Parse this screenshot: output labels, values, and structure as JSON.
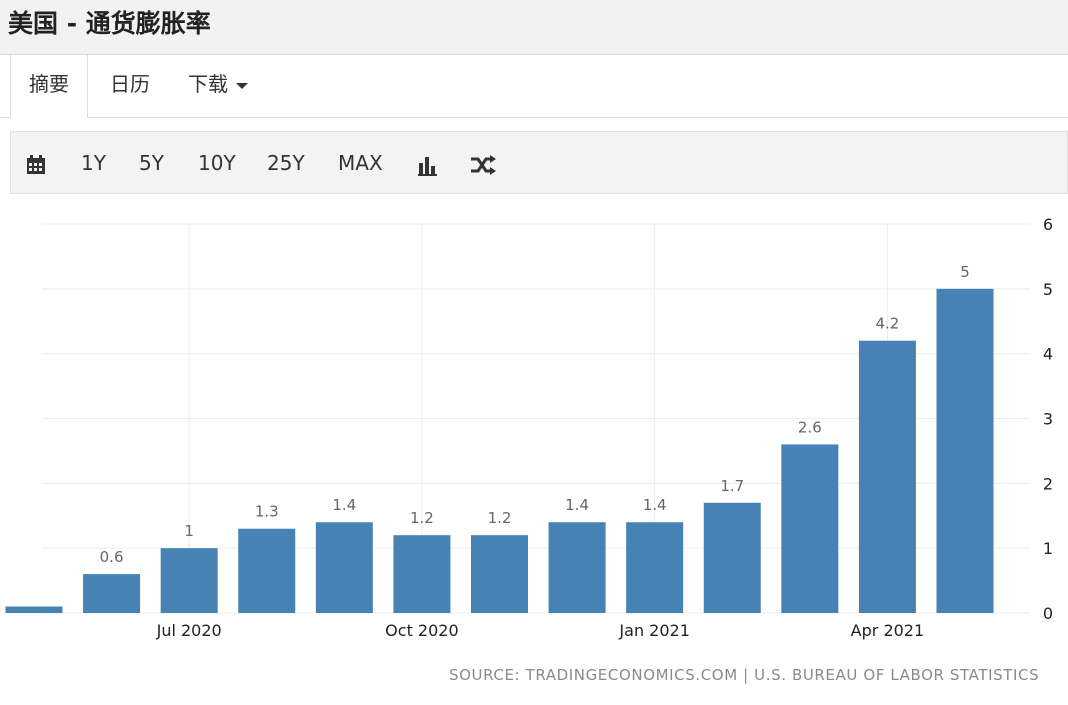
{
  "header": {
    "title": "美国 - 通货膨胀率"
  },
  "tabs": [
    {
      "label": "摘要",
      "active": true
    },
    {
      "label": "日历",
      "active": false
    },
    {
      "label": "下载",
      "active": false
    }
  ],
  "toolbar": {
    "calendar_icon": "calendar-icon",
    "ranges": [
      "1Y",
      "5Y",
      "10Y",
      "25Y",
      "MAX"
    ],
    "chart_type_icon": "bar-chart-icon",
    "compare_icon": "shuffle-icon"
  },
  "chart_data": {
    "type": "bar",
    "categories": [
      "May 2020",
      "Jun 2020",
      "Jul 2020",
      "Aug 2020",
      "Sep 2020",
      "Oct 2020",
      "Nov 2020",
      "Dec 2020",
      "Jan 2021",
      "Feb 2021",
      "Mar 2021",
      "Apr 2021",
      "May 2021"
    ],
    "values": [
      0.1,
      0.6,
      1,
      1.3,
      1.4,
      1.2,
      1.2,
      1.4,
      1.4,
      1.7,
      2.6,
      4.2,
      5
    ],
    "data_labels": [
      "",
      "0.6",
      "1",
      "1.3",
      "1.4",
      "1.2",
      "1.2",
      "1.4",
      "1.4",
      "1.7",
      "2.6",
      "4.2",
      "5"
    ],
    "x_tick_labels": [
      "Jul 2020",
      "Oct 2020",
      "Jan 2021",
      "Apr 2021"
    ],
    "y_ticks": [
      0,
      1,
      2,
      3,
      4,
      5,
      6
    ],
    "ylim": [
      0,
      6
    ],
    "yaxis_position": "right",
    "grid": true,
    "bar_color": "#4682b4",
    "source": "SOURCE: TRADINGECONOMICS.COM | U.S. BUREAU OF LABOR STATISTICS"
  }
}
